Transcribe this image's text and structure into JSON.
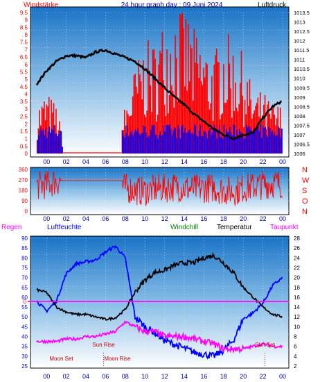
{
  "panels": {
    "wind": {
      "left_title": "Windstärke",
      "center_title": "24 hour graph day : 09 Juni 2024",
      "right_title": "Luftdruck",
      "left_ticks": [
        "0",
        "0.5",
        "1",
        "1.5",
        "2",
        "2.5",
        "3",
        "3.5",
        "4",
        "4.5",
        "5",
        "5.5",
        "6",
        "6.5",
        "7",
        "7.5",
        "8",
        "8.5",
        "9",
        "9.5"
      ],
      "right_ticks": [
        "1006",
        "1006.5",
        "1007",
        "1007.5",
        "1008",
        "1008.5",
        "1009",
        "1009.5",
        "1010",
        "1010.5",
        "1011",
        "1011.5",
        "1012",
        "1012.5",
        "1013",
        "1013.5"
      ]
    },
    "direction": {
      "left_ticks": [
        "0",
        "90",
        "180",
        "270",
        "360"
      ],
      "right_labels": [
        "N",
        "W",
        "S",
        "O",
        "N"
      ]
    },
    "climate": {
      "labels": {
        "rain": "Regen",
        "humidity": "Luftfeuchte",
        "windchill": "Windchill",
        "temperature": "Temperatur",
        "dewpoint": "Taupunkt"
      },
      "rain_value": "0",
      "left_ticks": [
        "25",
        "30",
        "35",
        "40",
        "45",
        "50",
        "55",
        "60",
        "65",
        "70",
        "75",
        "80",
        "85",
        "90"
      ],
      "right_ticks": [
        "2",
        "4",
        "6",
        "8",
        "10",
        "12",
        "14",
        "16",
        "18",
        "20",
        "22",
        "24",
        "26",
        "28"
      ],
      "annotations": {
        "sun_rise": "Sun Rise",
        "sun_set": "Sun Set",
        "moon_set": "Moon Set",
        "moon_rise": "Moon Rise"
      }
    },
    "x_ticks": [
      "00",
      "02",
      "04",
      "06",
      "08",
      "10",
      "12",
      "14",
      "16",
      "18",
      "20",
      "22",
      "00"
    ]
  },
  "colors": {
    "wind_gust": "#ff0000",
    "wind_avg": "#0000ff",
    "pressure": "#000000",
    "direction": "#ff0000",
    "humidity": "#0000ff",
    "temperature": "#000000",
    "dewpoint": "#ff00ff",
    "windchill": "#008000",
    "rain": "#ff00ff"
  },
  "chart_data": [
    {
      "type": "bar",
      "title": "24 hour graph day : 09 Juni 2024",
      "xlabel": "",
      "ylabel": "Windstärke",
      "y2label": "Luftdruck",
      "ylim": [
        0,
        9.5
      ],
      "y2lim": [
        1006,
        1013.5
      ],
      "series": [
        {
          "name": "Windstärke",
          "axis": "left",
          "x": [
            8,
            9,
            10,
            11,
            12,
            13,
            14,
            15,
            16,
            17,
            18,
            19,
            20,
            21,
            22,
            23
          ],
          "values": [
            2.0,
            3.5,
            4.5,
            4.5,
            5.5,
            6.0,
            6.0,
            5.0,
            4.5,
            4.0,
            5.0,
            4.5,
            4.0,
            2.5,
            2.5,
            2.0
          ]
        },
        {
          "name": "Luftdruck",
          "axis": "right",
          "type": "line",
          "x": [
            -1,
            0,
            1,
            2,
            3,
            4,
            5,
            6,
            7,
            8,
            9,
            10,
            11,
            12,
            13,
            14,
            15,
            16,
            17,
            18,
            19,
            20,
            21,
            22,
            23,
            24
          ],
          "values": [
            1009.7,
            1010.4,
            1010.9,
            1011.2,
            1011.2,
            1011.1,
            1011.4,
            1011.5,
            1011.3,
            1011.1,
            1010.9,
            1010.5,
            1010.0,
            1009.5,
            1009.0,
            1008.6,
            1008.1,
            1007.7,
            1007.3,
            1007.0,
            1006.8,
            1007.0,
            1007.1,
            1007.9,
            1008.5,
            1008.8
          ]
        }
      ],
      "grid": true
    },
    {
      "type": "line",
      "ylabel": "",
      "ylim": [
        0,
        360
      ],
      "series": [
        {
          "name": "",
          "x": [
            -1,
            0,
            1,
            2,
            3,
            4,
            5,
            6,
            7,
            8,
            9,
            10,
            11,
            12,
            13,
            14,
            15,
            16,
            17,
            18,
            19,
            20,
            21,
            22,
            23,
            24
          ],
          "values": [
            220,
            230,
            260,
            260,
            260,
            260,
            260,
            260,
            260,
            200,
            180,
            170,
            190,
            200,
            210,
            200,
            190,
            200,
            200,
            180,
            170,
            200,
            210,
            230,
            240,
            235
          ]
        }
      ],
      "grid": true
    },
    {
      "type": "line",
      "ylabel": "Luftfeuchte",
      "y2label": "Temperatur",
      "ylim": [
        25,
        90
      ],
      "y2lim": [
        2,
        28
      ],
      "series": [
        {
          "name": "Luftfeuchte",
          "axis": "left",
          "x": [
            -1,
            0,
            1,
            2,
            3,
            4,
            5,
            6,
            7,
            8,
            9,
            10,
            11,
            12,
            13,
            14,
            15,
            16,
            17,
            18,
            19,
            20,
            21,
            22,
            23,
            24
          ],
          "values": [
            58,
            53,
            58,
            72,
            77,
            78,
            79,
            83,
            86,
            80,
            50,
            45,
            42,
            38,
            36,
            34,
            32,
            31,
            30,
            33,
            38,
            49,
            52,
            57,
            66,
            70
          ]
        },
        {
          "name": "Temperatur",
          "axis": "right",
          "x": [
            -1,
            0,
            1,
            2,
            3,
            4,
            5,
            6,
            7,
            8,
            9,
            10,
            11,
            12,
            13,
            14,
            15,
            16,
            17,
            18,
            19,
            20,
            21,
            22,
            23,
            24
          ],
          "values": [
            17.5,
            17,
            14,
            13,
            12.5,
            12.5,
            12,
            11.5,
            11.8,
            13.5,
            17,
            19.5,
            21,
            21.5,
            22.5,
            23,
            23,
            24,
            24.5,
            23,
            21,
            18,
            16,
            14,
            12.5,
            12
          ]
        },
        {
          "name": "Taupunkt",
          "axis": "right",
          "x": [
            -1,
            0,
            1,
            2,
            3,
            4,
            5,
            6,
            7,
            8,
            9,
            10,
            11,
            12,
            13,
            14,
            15,
            16,
            17,
            18,
            19,
            20,
            21,
            22,
            23,
            24
          ],
          "values": [
            7,
            7,
            7,
            7.5,
            7.5,
            8,
            8,
            8.5,
            9,
            11,
            10,
            9,
            9,
            8,
            8,
            8,
            7.5,
            7,
            6.5,
            5.5,
            5.5,
            5.5,
            6,
            6.5,
            6,
            6
          ]
        },
        {
          "name": "Regen",
          "axis": "left",
          "x": [
            -1,
            24
          ],
          "values": [
            57.8,
            57.8
          ]
        }
      ],
      "annotations": [
        {
          "text": "Moon Set",
          "x": 1.5
        },
        {
          "text": "Sun Rise",
          "x": 5.8
        },
        {
          "text": "Moon Rise",
          "x": 7.2
        },
        {
          "text": "Sun Set",
          "x": 22.2
        }
      ],
      "grid": true
    }
  ]
}
